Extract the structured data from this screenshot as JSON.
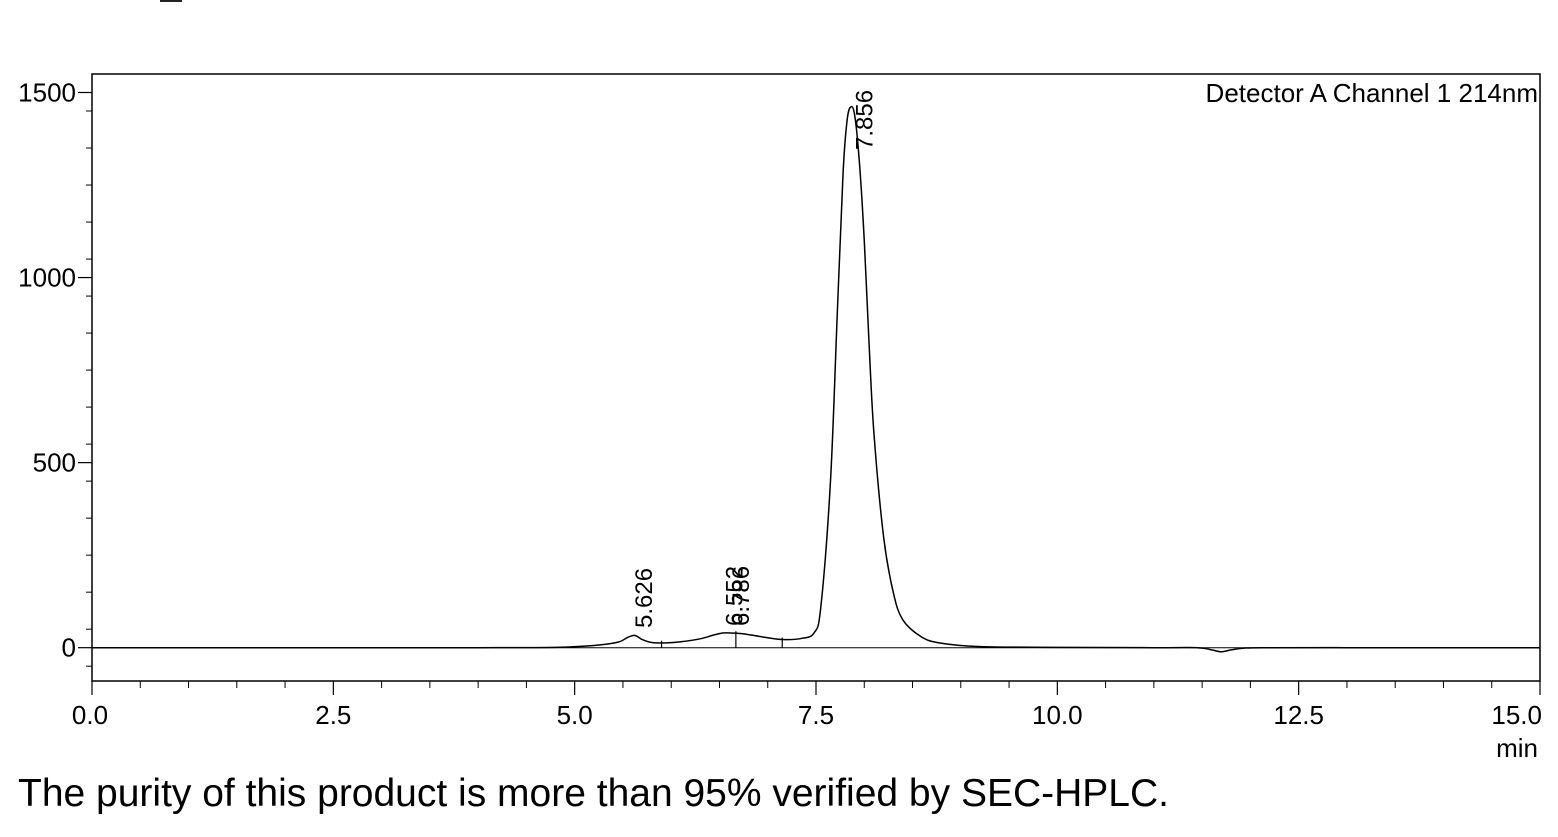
{
  "chart_data": {
    "type": "line",
    "annotation": "Detector A Channel 1 214nm",
    "xlabel": "min",
    "ylabel": "",
    "xlim": [
      0,
      15
    ],
    "ylim": [
      -90,
      1550
    ],
    "x_major_ticks": [
      0.0,
      2.5,
      5.0,
      7.5,
      10.0,
      12.5,
      15.0
    ],
    "x_tick_labels": [
      "0.0",
      "2.5",
      "5.0",
      "7.5",
      "10.0",
      "12.5",
      "15.0"
    ],
    "y_major_ticks": [
      0,
      500,
      1000,
      1500
    ],
    "y_tick_labels": [
      "0",
      "500",
      "1000",
      "1500"
    ],
    "grid": false,
    "series": [
      {
        "x": [
          0,
          1.0,
          2.0,
          3.0,
          4.0,
          4.8,
          5.2,
          5.45,
          5.55,
          5.626,
          5.7,
          5.8,
          5.95,
          6.1,
          6.3,
          6.45,
          6.552,
          6.68,
          6.786,
          6.95,
          7.15,
          7.35,
          7.48,
          7.55,
          7.65,
          7.72,
          7.78,
          7.82,
          7.856,
          7.9,
          7.95,
          8.0,
          8.05,
          8.1,
          8.2,
          8.3,
          8.4,
          8.6,
          8.8,
          9.2,
          10.0,
          11.0,
          11.45,
          11.6,
          11.7,
          11.8,
          11.95,
          12.2,
          13.0,
          14.0,
          15.0
        ],
        "y": [
          0,
          0,
          0,
          0,
          0,
          1,
          6,
          15,
          28,
          33,
          22,
          14,
          13,
          16,
          24,
          35,
          40,
          39,
          36,
          29,
          22,
          25,
          40,
          110,
          450,
          900,
          1280,
          1420,
          1460,
          1440,
          1310,
          1100,
          820,
          580,
          300,
          150,
          75,
          28,
          12,
          3,
          1,
          0,
          0,
          -6,
          -11,
          -6,
          -1,
          0,
          0,
          0,
          0
        ]
      }
    ],
    "peaks": [
      {
        "rt": "5.626",
        "x": 5.626
      },
      {
        "rt": "6.552",
        "x": 6.552
      },
      {
        "rt": "6.786",
        "x": 6.786
      },
      {
        "rt": "7.856",
        "x": 7.856
      }
    ],
    "integration_marks": [
      5.9,
      6.67,
      7.15
    ]
  },
  "caption": "The purity of this product is more than 95% verified by SEC-HPLC."
}
